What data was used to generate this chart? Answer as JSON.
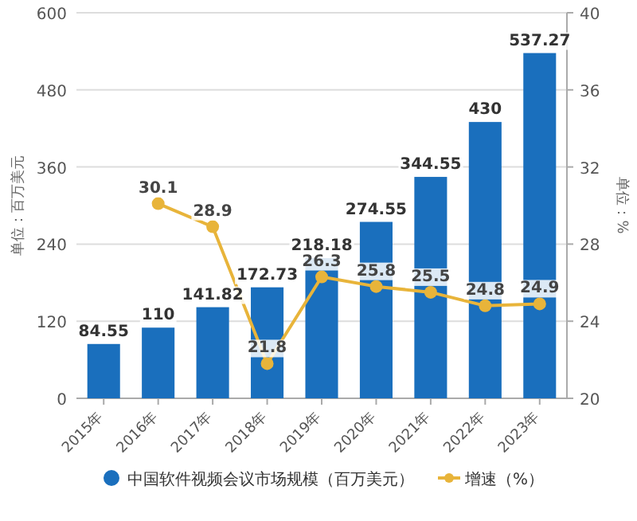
{
  "chart_data": {
    "type": "bar",
    "categories": [
      "2015年",
      "2016年",
      "2017年",
      "2018年",
      "2019年",
      "2020年",
      "2021年",
      "2022年",
      "2023年"
    ],
    "ylabel": "单位：百万美元",
    "y2label": "单位：%",
    "ylim": [
      0,
      600
    ],
    "yticks": [
      0,
      120,
      240,
      360,
      480,
      600
    ],
    "y2lim": [
      20,
      40
    ],
    "y2ticks": [
      20,
      24,
      28,
      32,
      36,
      40
    ],
    "grid": "y",
    "legend": "bottom",
    "data_labels": true,
    "series": [
      {
        "name": "中国软件视频会议市场规模（百万美元）",
        "color": "#1a6fbd",
        "values": [
          84.55,
          110,
          141.82,
          172.73,
          218.18,
          274.55,
          344.55,
          430,
          537.27
        ]
      },
      {
        "name": "增速（%）",
        "type": "line",
        "axis": "y2",
        "color": "#e8b43a",
        "marker": "circle",
        "values": [
          null,
          30.1,
          28.9,
          21.8,
          26.3,
          25.8,
          25.5,
          24.8,
          24.9
        ]
      }
    ]
  }
}
